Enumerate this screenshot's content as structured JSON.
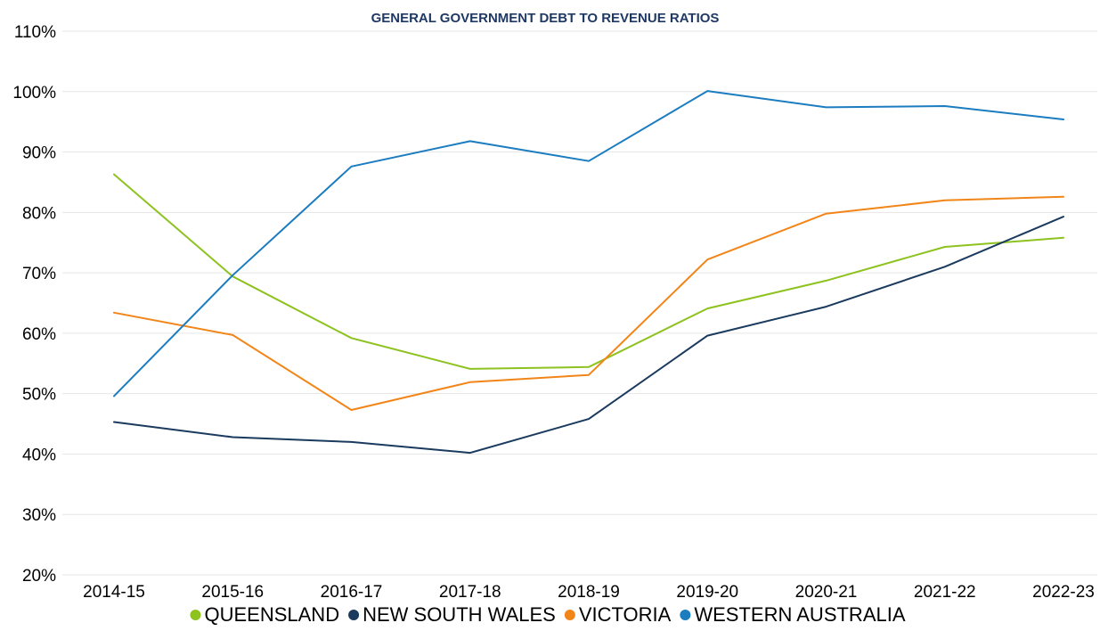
{
  "chart_data": {
    "type": "line",
    "title": "GENERAL GOVERNMENT DEBT TO REVENUE RATIOS",
    "xlabel": "",
    "ylabel": "",
    "categories": [
      "2014-15",
      "2015-16",
      "2016-17",
      "2017-18",
      "2018-19",
      "2019-20",
      "2020-21",
      "2021-22",
      "2022-23"
    ],
    "ylim": [
      20,
      110
    ],
    "yticks": [
      20,
      30,
      40,
      50,
      60,
      70,
      80,
      90,
      100,
      110
    ],
    "ytick_labels": [
      "20%",
      "30%",
      "40%",
      "50%",
      "60%",
      "70%",
      "80%",
      "90%",
      "100%",
      "110%"
    ],
    "grid": true,
    "legend_position": "bottom",
    "series": [
      {
        "name": "QUEENSLAND",
        "color": "#8dc21f",
        "values": [
          86.3,
          69.4,
          59.2,
          54.1,
          54.4,
          64.1,
          68.7,
          74.3,
          75.8
        ]
      },
      {
        "name": "NEW SOUTH WALES",
        "color": "#1a3a5e",
        "values": [
          45.3,
          42.8,
          42.0,
          40.2,
          45.8,
          59.6,
          64.4,
          71.0,
          79.3
        ]
      },
      {
        "name": "VICTORIA",
        "color": "#f28518",
        "values": [
          63.4,
          59.7,
          47.3,
          51.9,
          53.1,
          72.2,
          79.8,
          82.0,
          82.6
        ]
      },
      {
        "name": "WESTERN AUSTRALIA",
        "color": "#1b7cc0",
        "values": [
          49.6,
          69.6,
          87.6,
          91.8,
          88.5,
          100.1,
          97.4,
          97.6,
          95.4
        ]
      }
    ]
  }
}
